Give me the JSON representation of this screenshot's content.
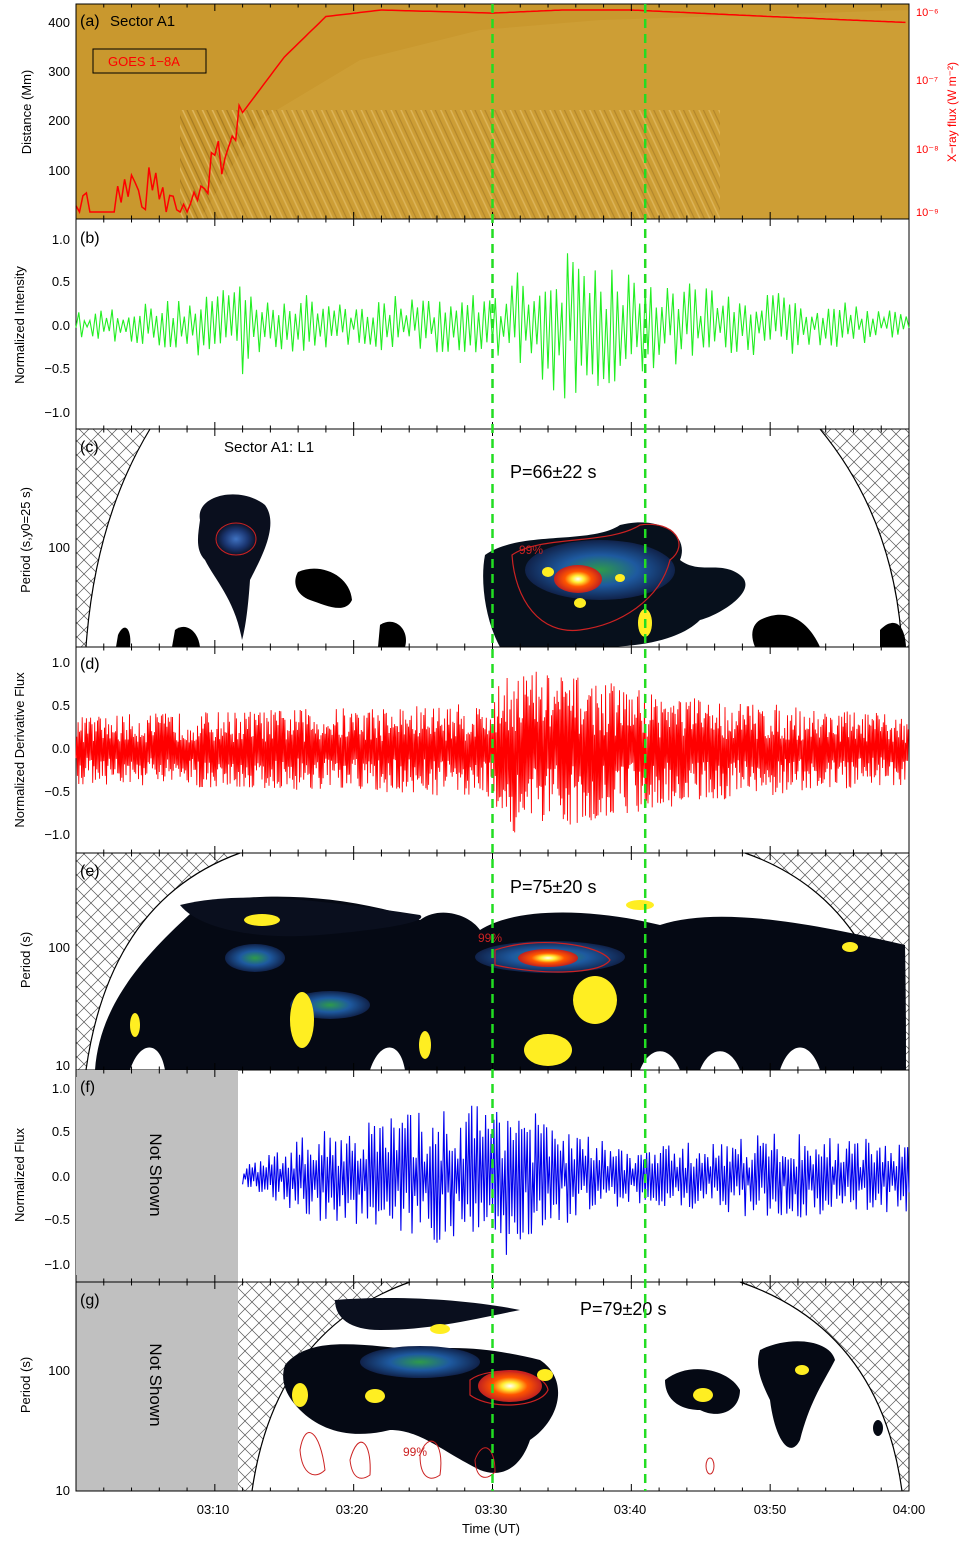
{
  "figure": {
    "xlabel": "Time (UT)",
    "x_ticks": [
      "03:10",
      "03:20",
      "03:30",
      "03:40",
      "03:50",
      "04:00"
    ],
    "x_range": [
      "03:00",
      "04:00"
    ],
    "vlines": [
      "03:30",
      "03:41"
    ],
    "colors": {
      "vline": "#22dd22",
      "green_series": "#22ee22",
      "red_series": "#ff0000",
      "blue_series": "#0000ee",
      "goes": "#ff0000",
      "contour_99": "#cc2222",
      "gray_mask": "#c0c0c0",
      "background_a": "#c9982e"
    }
  },
  "panels": [
    {
      "id": "a",
      "label": "(a)",
      "title": "Sector A1",
      "ylabel": "Distance (Mm)",
      "y_ticks": [
        "100",
        "200",
        "300",
        "400"
      ],
      "right_ylabel": "X−ray flux (W m⁻²)",
      "right_ticks": [
        "10⁻⁶",
        "10⁻⁷",
        "10⁻⁸",
        "10⁻⁹"
      ],
      "legend": "GOES 1−8A"
    },
    {
      "id": "b",
      "label": "(b)",
      "ylabel": "Normalized Intensity",
      "y_ticks": [
        "1.0",
        "0.5",
        "0.0",
        "−0.5",
        "−1.0"
      ]
    },
    {
      "id": "c",
      "label": "(c)",
      "title": "Sector A1: L1",
      "ylabel": "Period (s,y0=25 s)",
      "y_ticks": [
        "100"
      ],
      "annotation": "P=66±22 s",
      "contour_label": "99%"
    },
    {
      "id": "d",
      "label": "(d)",
      "ylabel": "Normalized Derivative Flux",
      "y_ticks": [
        "1.0",
        "0.5",
        "0.0",
        "−0.5",
        "−1.0"
      ]
    },
    {
      "id": "e",
      "label": "(e)",
      "ylabel": "Period (s)",
      "y_ticks": [
        "100",
        "10"
      ],
      "annotation": "P=75±20 s",
      "contour_label": "99%"
    },
    {
      "id": "f",
      "label": "(f)",
      "ylabel": "Normalized Flux",
      "y_ticks": [
        "1.0",
        "0.5",
        "0.0",
        "−0.5",
        "−1.0"
      ],
      "mask_text": "Not Shown"
    },
    {
      "id": "g",
      "label": "(g)",
      "ylabel": "Period (s)",
      "y_ticks": [
        "100",
        "10"
      ],
      "annotation": "P=79±20 s",
      "contour_label": "99%",
      "mask_text": "Not Shown"
    }
  ],
  "chart_data": [
    {
      "type": "line",
      "panel": "a",
      "title": "Sector A1",
      "description_series": "GOES 1−8A",
      "x": [
        "03:00",
        "03:05",
        "03:08",
        "03:10",
        "03:12",
        "03:15",
        "03:18",
        "03:22",
        "03:30",
        "03:35",
        "03:40",
        "03:50",
        "04:00"
      ],
      "values": [
        1.2e-09,
        2e-09,
        1e-09,
        5e-09,
        3e-08,
        2e-07,
        8e-07,
        1e-06,
        9e-07,
        1e-06,
        1e-06,
        8e-07,
        6.5e-07
      ],
      "ylim_right": [
        1e-09,
        1e-06
      ],
      "ylim": [
        0,
        430
      ]
    },
    {
      "type": "line",
      "panel": "b",
      "ylabel": "Normalized Intensity",
      "ylim": [
        -1.2,
        1.2
      ],
      "x_range": [
        "03:00",
        "04:00"
      ],
      "amplitude_envelope": [
        {
          "x": "03:00",
          "amp": 0.15
        },
        {
          "x": "03:08",
          "amp": 0.3
        },
        {
          "x": "03:12",
          "amp": 0.6
        },
        {
          "x": "03:15",
          "amp": 0.35
        },
        {
          "x": "03:20",
          "amp": 0.3
        },
        {
          "x": "03:26",
          "amp": 0.35
        },
        {
          "x": "03:30",
          "amp": 0.35
        },
        {
          "x": "03:33",
          "amp": 0.8
        },
        {
          "x": "03:37",
          "amp": 0.9
        },
        {
          "x": "03:40",
          "amp": 0.6
        },
        {
          "x": "03:45",
          "amp": 0.45
        },
        {
          "x": "03:55",
          "amp": 0.3
        },
        {
          "x": "04:00",
          "amp": 0.15
        }
      ]
    },
    {
      "type": "line",
      "panel": "d",
      "ylabel": "Normalized Derivative Flux",
      "ylim": [
        -1.2,
        1.2
      ],
      "x_range": [
        "03:00",
        "04:00"
      ],
      "amplitude_envelope": [
        {
          "x": "03:00",
          "amp": 0.4
        },
        {
          "x": "03:30",
          "amp": 0.55
        },
        {
          "x": "03:31",
          "amp": 1.0
        },
        {
          "x": "03:45",
          "amp": 0.6
        },
        {
          "x": "04:00",
          "amp": 0.4
        }
      ]
    },
    {
      "type": "line",
      "panel": "f",
      "ylabel": "Normalized Flux",
      "ylim": [
        -1.2,
        1.2
      ],
      "x_range": [
        "03:12",
        "04:00"
      ],
      "amplitude_envelope": [
        {
          "x": "03:12",
          "amp": 0.1
        },
        {
          "x": "03:17",
          "amp": 0.5
        },
        {
          "x": "03:23",
          "amp": 0.7
        },
        {
          "x": "03:28",
          "amp": 0.8
        },
        {
          "x": "03:31",
          "amp": 1.0
        },
        {
          "x": "03:34",
          "amp": 0.6
        },
        {
          "x": "03:40",
          "amp": 0.3
        },
        {
          "x": "03:50",
          "amp": 0.5
        },
        {
          "x": "04:00",
          "amp": 0.4
        }
      ]
    },
    {
      "type": "heatmap",
      "panel": "c",
      "title": "Sector A1: L1",
      "ylabel": "Period (s,y0=25 s)",
      "annotation": "P=66±22 s",
      "peak": {
        "time": "03:33",
        "period_s": 66
      }
    },
    {
      "type": "heatmap",
      "panel": "e",
      "ylabel": "Period (s)",
      "annotation": "P=75±20 s",
      "peak": {
        "time": "03:33",
        "period_s": 75
      }
    },
    {
      "type": "heatmap",
      "panel": "g",
      "ylabel": "Period (s)",
      "annotation": "P=79±20 s",
      "peak": {
        "time": "03:31",
        "period_s": 79
      }
    }
  ]
}
